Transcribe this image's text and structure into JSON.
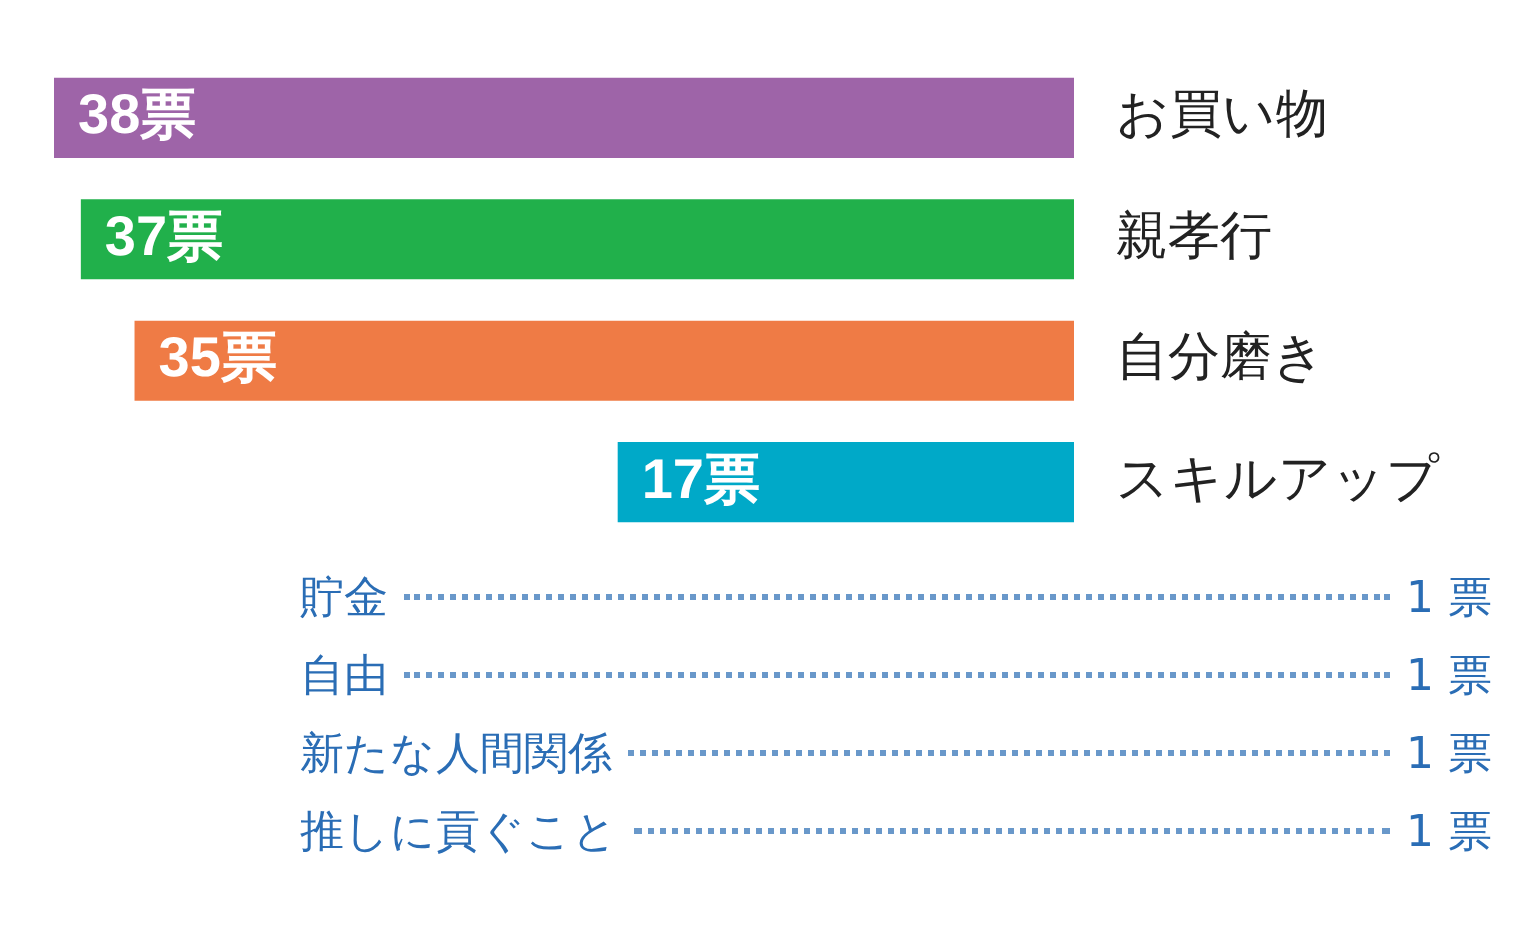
{
  "chart_data": [
    {
      "type": "bar",
      "orientation": "horizontal",
      "categories": [
        "お買い物",
        "親孝行",
        "自分磨き",
        "スキルアップ"
      ],
      "values": [
        38,
        37,
        35,
        17
      ],
      "colors": [
        "#9e64a8",
        "#21b04b",
        "#ef7b45",
        "#00a9c8"
      ],
      "value_labels": [
        "38票",
        "37票",
        "35票",
        "17票"
      ],
      "xlim": [
        38,
        0
      ],
      "tick_labels": "y",
      "legend": false
    },
    {
      "type": "other",
      "categories": [
        "貯金",
        "自由",
        "新たな人間関係",
        "推しに貢ぐこと"
      ],
      "values": [
        1,
        1,
        1,
        1
      ],
      "value_labels": [
        "1 票",
        "1 票",
        "1 票",
        "1 票"
      ],
      "color": "#2a6db5"
    }
  ]
}
